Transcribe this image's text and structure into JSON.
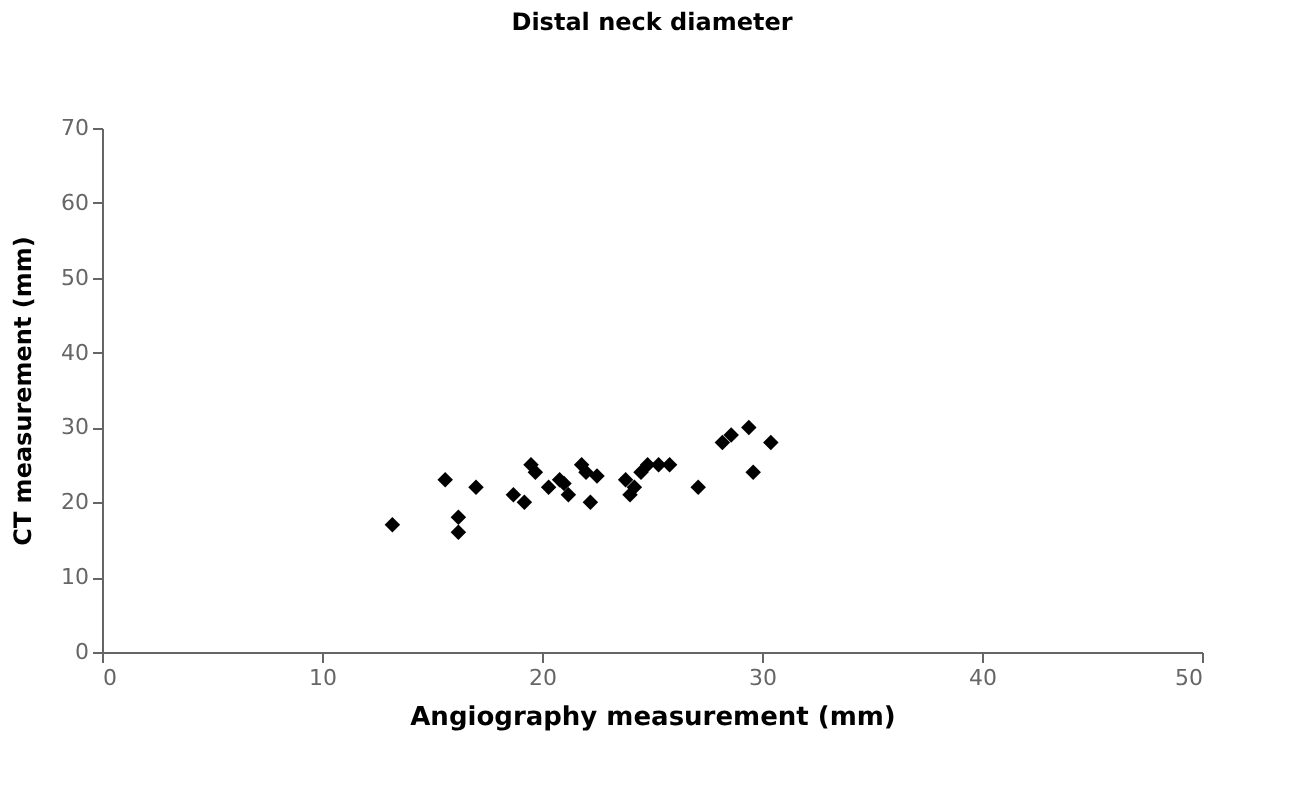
{
  "chart_data": {
    "type": "scatter",
    "title": "Distal neck diameter",
    "xlabel": "Angiography measurement (mm)",
    "ylabel": "CT measurement (mm)",
    "x": [
      13.2,
      15.6,
      16.2,
      16.2,
      17.0,
      18.7,
      19.2,
      19.5,
      19.7,
      20.3,
      20.8,
      21.0,
      21.2,
      21.8,
      22.0,
      22.2,
      22.5,
      23.8,
      24.0,
      24.2,
      24.5,
      24.8,
      25.3,
      25.8,
      27.1,
      28.2,
      28.6,
      29.4,
      29.6,
      30.4
    ],
    "series": [
      {
        "color": "#000000",
        "values": [
          17,
          23,
          18,
          16,
          22,
          21,
          20,
          25,
          24,
          22,
          23,
          22.5,
          21,
          25,
          24,
          20,
          23.5,
          23,
          21,
          22,
          24,
          25,
          25,
          25,
          22,
          28,
          29,
          30,
          24,
          28
        ]
      }
    ],
    "xlim": [
      0,
      50
    ],
    "xticks": [
      0,
      10,
      20,
      30,
      40,
      50
    ],
    "ylim": [
      0,
      70
    ],
    "yticks": [
      0,
      10,
      20,
      30,
      40,
      50,
      60,
      70
    ],
    "grid": false,
    "marker": "diamond"
  }
}
